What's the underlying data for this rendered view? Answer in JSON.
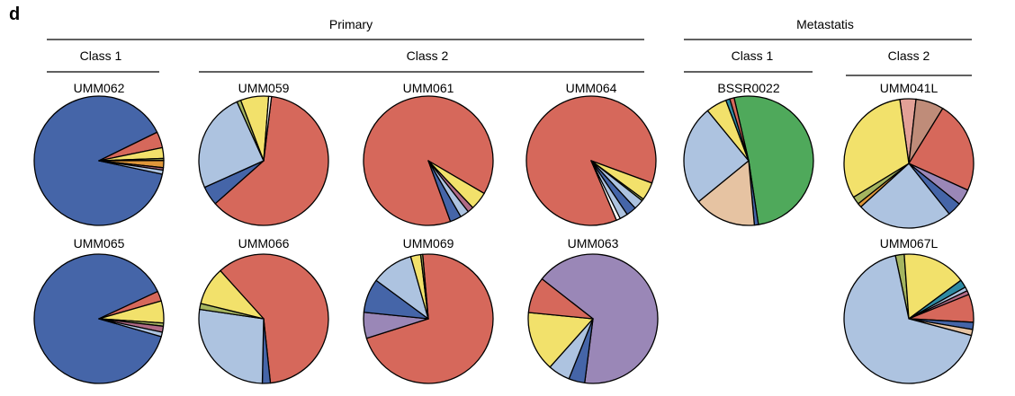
{
  "panel_letter": "d",
  "groups": {
    "primary": "Primary",
    "metastasis": "Metastatis"
  },
  "classes": {
    "primary_class1": "Class 1",
    "primary_class2": "Class 2",
    "meta_class1": "Class 1",
    "meta_class2": "Class 2"
  },
  "colors": {
    "blue": "#4565a8",
    "red": "#d6685b",
    "light_blue": "#adc3e0",
    "yellow": "#f2e16b",
    "olive": "#a5b560",
    "orange": "#e0973a",
    "mauve": "#b06b86",
    "purple": "#9a87b7",
    "green": "#4fa95b",
    "peach": "#e6c3a2",
    "teal": "#2f8ba4",
    "pink": "#e3a197",
    "brown": "#bf8c79",
    "white": "#ffffff"
  },
  "chart_data": {
    "type": "pie",
    "charts": [
      {
        "label": "UMM062",
        "slices": [
          {
            "color": "blue",
            "value": 89.4
          },
          {
            "color": "red",
            "value": 4.0
          },
          {
            "color": "yellow",
            "value": 2.7
          },
          {
            "color": "olive",
            "value": 0.5
          },
          {
            "color": "orange",
            "value": 1.8
          },
          {
            "color": "mauve",
            "value": 0.6
          },
          {
            "color": "light_blue",
            "value": 1.0
          }
        ]
      },
      {
        "label": "UMM059",
        "slices": [
          {
            "color": "red",
            "value": 61.5
          },
          {
            "color": "blue",
            "value": 4.8
          },
          {
            "color": "light_blue",
            "value": 25.0
          },
          {
            "color": "olive",
            "value": 1.0
          },
          {
            "color": "yellow",
            "value": 7.0
          },
          {
            "color": "white",
            "value": 0.7
          }
        ]
      },
      {
        "label": "UMM061",
        "slices": [
          {
            "color": "red",
            "value": 89.0
          },
          {
            "color": "yellow",
            "value": 4.5
          },
          {
            "color": "mauve",
            "value": 1.5
          },
          {
            "color": "light_blue",
            "value": 2.2
          },
          {
            "color": "blue",
            "value": 2.8
          }
        ]
      },
      {
        "label": "UMM064",
        "slices": [
          {
            "color": "red",
            "value": 87.0
          },
          {
            "color": "yellow",
            "value": 4.5
          },
          {
            "color": "olive",
            "value": 0.5
          },
          {
            "color": "light_blue",
            "value": 2.5
          },
          {
            "color": "blue",
            "value": 2.5
          },
          {
            "color": "light_blue",
            "value": 2.0
          },
          {
            "color": "white",
            "value": 1.0
          }
        ]
      },
      {
        "label": "BSSR0022",
        "slices": [
          {
            "color": "green",
            "value": 51.2
          },
          {
            "color": "blue",
            "value": 1.0
          },
          {
            "color": "peach",
            "value": 15.5
          },
          {
            "color": "light_blue",
            "value": 25.0
          },
          {
            "color": "yellow",
            "value": 5.2
          },
          {
            "color": "teal",
            "value": 1.0
          },
          {
            "color": "red",
            "value": 1.1
          }
        ]
      },
      {
        "label": "UMM041L",
        "slices": [
          {
            "color": "pink",
            "value": 4.0
          },
          {
            "color": "brown",
            "value": 7.0
          },
          {
            "color": "red",
            "value": 23.0
          },
          {
            "color": "purple",
            "value": 4.0
          },
          {
            "color": "blue",
            "value": 3.5
          },
          {
            "color": "light_blue",
            "value": 24.0
          },
          {
            "color": "orange",
            "value": 1.0
          },
          {
            "color": "olive",
            "value": 2.0
          },
          {
            "color": "yellow",
            "value": 31.5
          }
        ]
      },
      {
        "label": "UMM065",
        "slices": [
          {
            "color": "blue",
            "value": 88.6
          },
          {
            "color": "red",
            "value": 2.5
          },
          {
            "color": "yellow",
            "value": 5.5
          },
          {
            "color": "olive",
            "value": 0.8
          },
          {
            "color": "mauve",
            "value": 1.5
          },
          {
            "color": "light_blue",
            "value": 1.1
          }
        ]
      },
      {
        "label": "UMM066",
        "slices": [
          {
            "color": "red",
            "value": 60.0
          },
          {
            "color": "blue",
            "value": 2.0
          },
          {
            "color": "light_blue",
            "value": 27.0
          },
          {
            "color": "olive",
            "value": 1.5
          },
          {
            "color": "yellow",
            "value": 9.5
          }
        ]
      },
      {
        "label": "UMM069",
        "slices": [
          {
            "color": "red",
            "value": 71.5
          },
          {
            "color": "purple",
            "value": 6.5
          },
          {
            "color": "blue",
            "value": 8.5
          },
          {
            "color": "light_blue",
            "value": 10.5
          },
          {
            "color": "yellow",
            "value": 2.5
          },
          {
            "color": "olive",
            "value": 0.5
          }
        ]
      },
      {
        "label": "UMM063",
        "slices": [
          {
            "color": "purple",
            "value": 66.5
          },
          {
            "color": "blue",
            "value": 4.0
          },
          {
            "color": "light_blue",
            "value": 5.5
          },
          {
            "color": "yellow",
            "value": 15.0
          },
          {
            "color": "red",
            "value": 9.0
          }
        ]
      },
      {
        "label": "UMM067L",
        "slices": [
          {
            "color": "olive",
            "value": 2.2
          },
          {
            "color": "yellow",
            "value": 16.0
          },
          {
            "color": "teal",
            "value": 2.0
          },
          {
            "color": "light_blue",
            "value": 1.0
          },
          {
            "color": "mauve",
            "value": 1.0
          },
          {
            "color": "red",
            "value": 7.0
          },
          {
            "color": "blue",
            "value": 1.8
          },
          {
            "color": "peach",
            "value": 1.5
          },
          {
            "color": "light_blue",
            "value": 67.5
          }
        ]
      }
    ]
  }
}
